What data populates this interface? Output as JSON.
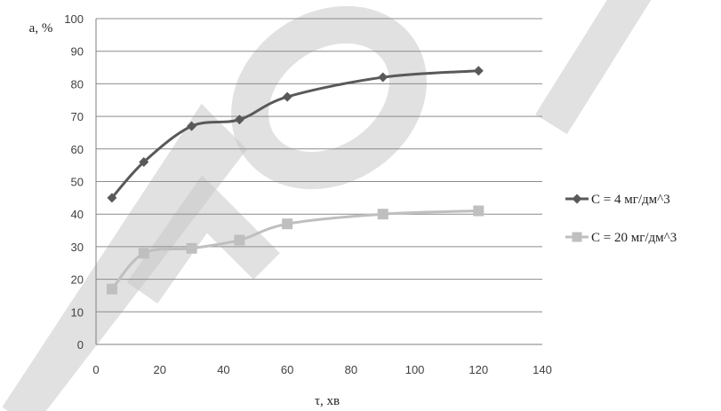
{
  "chart_data": {
    "type": "line",
    "xlabel": "τ, хв",
    "ylabel": "a, %",
    "xlim": [
      0,
      140
    ],
    "ylim": [
      0,
      100
    ],
    "x_ticks": [
      0,
      20,
      40,
      60,
      80,
      100,
      120,
      140
    ],
    "y_ticks": [
      0,
      10,
      20,
      30,
      40,
      50,
      60,
      70,
      80,
      90,
      100
    ],
    "grid": "horizontal",
    "legend_position": "right",
    "x": [
      5,
      15,
      30,
      45,
      60,
      90,
      120
    ],
    "series": [
      {
        "name": "C = 4 мг/дм^3",
        "marker": "diamond",
        "color": "#595959",
        "values": [
          45,
          56,
          67,
          69,
          76,
          82,
          84
        ]
      },
      {
        "name": "C = 20 мг/дм^3",
        "marker": "square",
        "color": "#bfbfbf",
        "values": [
          17,
          28,
          29.5,
          32,
          37,
          40,
          41
        ]
      }
    ]
  }
}
